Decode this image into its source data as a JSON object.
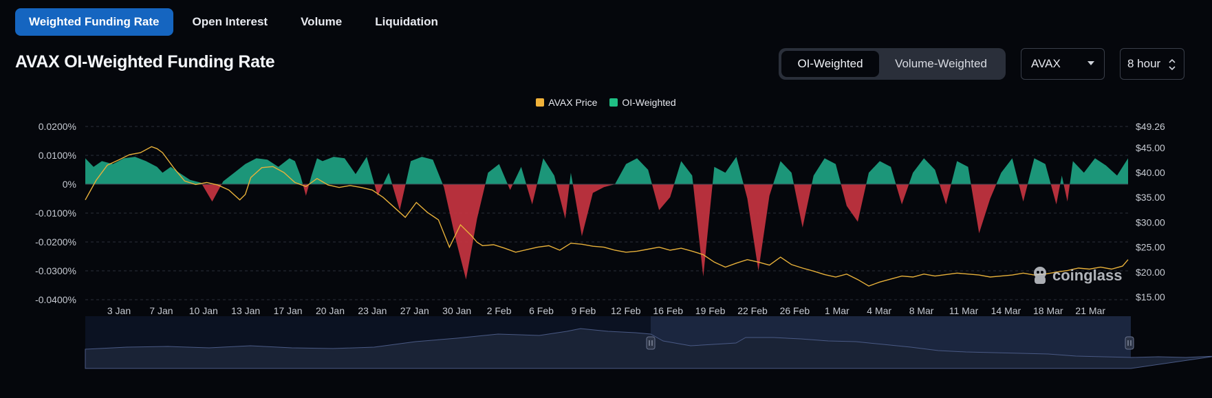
{
  "tabs": [
    {
      "label": "Weighted Funding Rate",
      "active": true
    },
    {
      "label": "Open Interest",
      "active": false
    },
    {
      "label": "Volume",
      "active": false
    },
    {
      "label": "Liquidation",
      "active": false
    }
  ],
  "title": "AVAX OI-Weighted Funding Rate",
  "toggle": {
    "active": "OI-Weighted",
    "inactive": "Volume-Weighted"
  },
  "coin_select": {
    "value": "AVAX"
  },
  "interval_select": {
    "value": "8 hour"
  },
  "watermark": "coinglass",
  "colors": {
    "price": "#e8b13a",
    "positive": "#1e9e80",
    "negative": "#c0333f",
    "accent": "#1565c0",
    "navigator_fill": "#1a2336"
  },
  "chart_data": {
    "type": "area",
    "legend": [
      {
        "name": "AVAX Price",
        "color": "#f0b23a"
      },
      {
        "name": "OI-Weighted",
        "color": "#1fbf84"
      }
    ],
    "x_ticks": [
      "3 Jan",
      "7 Jan",
      "10 Jan",
      "13 Jan",
      "17 Jan",
      "20 Jan",
      "23 Jan",
      "27 Jan",
      "30 Jan",
      "2 Feb",
      "6 Feb",
      "9 Feb",
      "12 Feb",
      "16 Feb",
      "19 Feb",
      "22 Feb",
      "26 Feb",
      "1 Mar",
      "4 Mar",
      "8 Mar",
      "11 Mar",
      "14 Mar",
      "18 Mar",
      "21 Mar"
    ],
    "y_left_ticks": [
      "0.0200%",
      "0.0100%",
      "0%",
      "-0.0100%",
      "-0.0200%",
      "-0.0300%",
      "-0.0400%"
    ],
    "y_left_range": [
      -0.04,
      0.02
    ],
    "y_right_ticks": [
      "$49.26",
      "$45.00",
      "$40.00",
      "$35.00",
      "$30.00",
      "$25.00",
      "$20.00",
      "$15.00"
    ],
    "y_right_range": [
      15,
      49.26
    ],
    "series": [
      {
        "name": "OI-Weighted",
        "unit": "%",
        "x": [
          0,
          1.5,
          3,
          5,
          7,
          9,
          11,
          13,
          14,
          15.5,
          17,
          19,
          21,
          23,
          25,
          27,
          29,
          31,
          33,
          35,
          37,
          38,
          39,
          40,
          41,
          42,
          43,
          45,
          47,
          49,
          51,
          53,
          55,
          57,
          59,
          61,
          63,
          65,
          67,
          69,
          71,
          73,
          75,
          77,
          79,
          81,
          83,
          85,
          87,
          88,
          90,
          92,
          94,
          96,
          98,
          100,
          102,
          104,
          106,
          108,
          110,
          112,
          114,
          116,
          118,
          120,
          122,
          124,
          126,
          128,
          130,
          132,
          134,
          136,
          138,
          140,
          142,
          144,
          146,
          148,
          150,
          152,
          154,
          156,
          158,
          160,
          162,
          164,
          166,
          168,
          170,
          172,
          174,
          176,
          177,
          178,
          179,
          181,
          183,
          185,
          187,
          189
        ],
        "values": [
          0.009,
          0.006,
          0.008,
          0.007,
          0.009,
          0.0095,
          0.008,
          0.006,
          0.004,
          0.006,
          0.004,
          0.0015,
          0.0005,
          -0.006,
          0.001,
          0.004,
          0.007,
          0.009,
          0.0085,
          0.006,
          0.009,
          0.008,
          0.003,
          -0.004,
          0.003,
          0.009,
          0.008,
          0.0095,
          0.009,
          0.0035,
          0.0095,
          -0.004,
          0.004,
          -0.009,
          0.008,
          0.0095,
          0.0085,
          -0.001,
          -0.018,
          -0.033,
          -0.012,
          0.004,
          0.007,
          -0.002,
          0.006,
          -0.007,
          0.009,
          0.003,
          -0.012,
          0.004,
          -0.018,
          -0.003,
          -0.001,
          0.0,
          0.007,
          0.009,
          0.005,
          -0.009,
          -0.0045,
          0.008,
          0.003,
          -0.032,
          0.006,
          0.004,
          0.0095,
          -0.005,
          -0.03,
          -0.004,
          0.008,
          0.004,
          -0.015,
          0.003,
          0.009,
          0.007,
          -0.0075,
          -0.013,
          0.004,
          0.008,
          0.006,
          -0.007,
          0.004,
          0.009,
          0.005,
          -0.007,
          0.008,
          0.006,
          -0.017,
          -0.005,
          0.004,
          0.009,
          -0.006,
          0.009,
          0.007,
          -0.007,
          0.003,
          -0.006,
          0.008,
          0.004,
          0.009,
          0.0065,
          0.003,
          0.009
        ]
      },
      {
        "name": "AVAX Price",
        "unit": "$",
        "x": [
          0,
          2,
          4,
          6,
          8,
          10,
          12,
          13,
          14,
          16,
          18,
          20,
          22,
          24,
          26,
          28,
          29,
          30,
          32,
          34,
          36,
          38,
          40,
          42,
          44,
          46,
          48,
          50,
          52,
          54,
          56,
          58,
          60,
          62,
          64,
          66,
          68,
          70,
          71,
          72,
          74,
          76,
          78,
          80,
          82,
          84,
          86,
          88,
          90,
          92,
          94,
          96,
          98,
          100,
          102,
          104,
          106,
          108,
          110,
          112,
          114,
          116,
          118,
          120,
          122,
          124,
          126,
          128,
          130,
          132,
          134,
          136,
          138,
          140,
          142,
          144,
          146,
          148,
          150,
          152,
          154,
          156,
          158,
          160,
          162,
          164,
          166,
          168,
          170,
          172,
          174,
          176,
          178,
          180,
          182,
          184,
          186,
          188,
          189
        ],
        "values": [
          34.5,
          38.5,
          41.5,
          42.5,
          43.6,
          44.0,
          45.2,
          44.8,
          44.0,
          41.0,
          38.3,
          37.6,
          38.0,
          37.5,
          36.5,
          34.5,
          35.6,
          39.0,
          41.0,
          41.2,
          40.0,
          38.0,
          37.2,
          38.8,
          37.5,
          37.0,
          37.4,
          37.0,
          36.5,
          35.0,
          33.0,
          31.0,
          34.0,
          32.0,
          30.5,
          25.0,
          29.5,
          27.3,
          26.0,
          25.3,
          25.5,
          24.8,
          24.0,
          24.5,
          25.0,
          25.3,
          24.4,
          25.8,
          25.6,
          25.2,
          25.0,
          24.4,
          24.0,
          24.2,
          24.6,
          25.0,
          24.4,
          24.8,
          24.2,
          23.5,
          22.0,
          21.0,
          21.8,
          22.5,
          22.0,
          21.4,
          23.0,
          21.5,
          20.8,
          20.2,
          19.5,
          19.0,
          19.6,
          18.5,
          17.2,
          18.0,
          18.6,
          19.2,
          19.0,
          19.6,
          19.2,
          19.5,
          19.8,
          19.6,
          19.4,
          19.0,
          19.2,
          19.4,
          19.8,
          19.4,
          19.6,
          20.0,
          20.3,
          20.8,
          20.6,
          21.0,
          20.6,
          21.2,
          22.5
        ]
      }
    ]
  }
}
